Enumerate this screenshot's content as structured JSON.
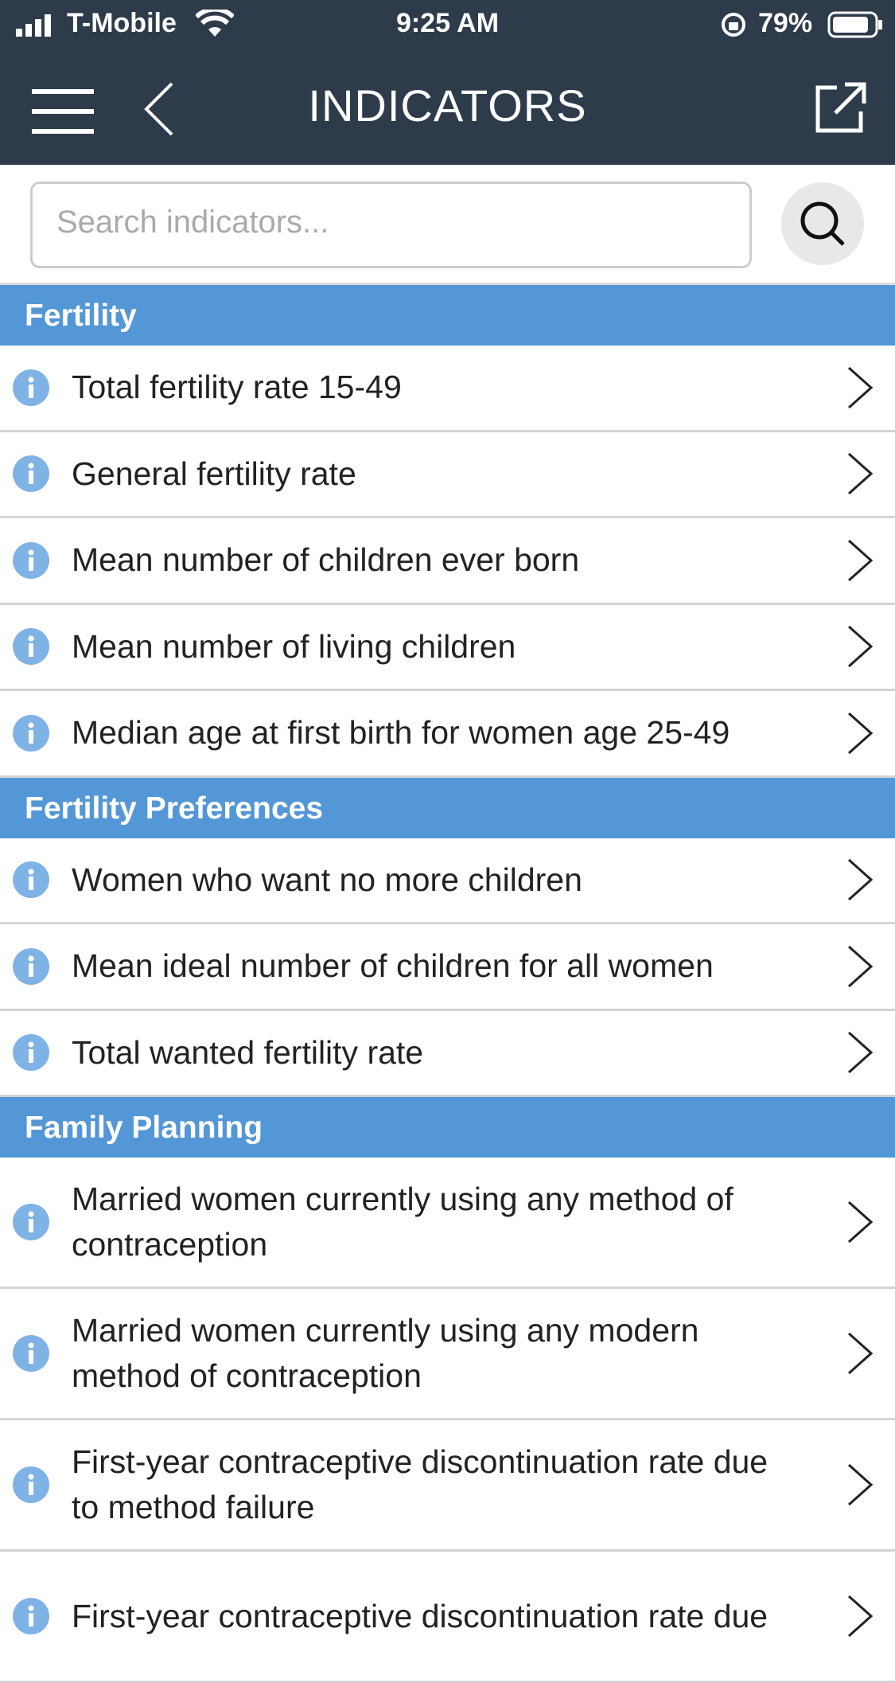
{
  "status_bar": {
    "carrier": "T-Mobile",
    "time": "9:25 AM",
    "battery": "79%"
  },
  "header": {
    "title": "INDICATORS"
  },
  "search": {
    "placeholder": "Search indicators..."
  },
  "sections": [
    {
      "title": "Fertility",
      "items": [
        "Total fertility rate 15-49",
        "General fertility rate",
        "Mean number of children ever born",
        "Mean number of living children",
        "Median age at first birth for women age 25-49"
      ]
    },
    {
      "title": "Fertility Preferences",
      "items": [
        "Women who want no more children",
        "Mean ideal number of children for all women",
        "Total wanted fertility rate"
      ]
    },
    {
      "title": "Family Planning",
      "items": [
        "Married women currently using any method of contraception",
        "Married women currently using any modern method of contraception",
        "First-year contraceptive discontinuation rate due to method failure",
        "First-year contraceptive discontinuation rate due"
      ]
    }
  ]
}
